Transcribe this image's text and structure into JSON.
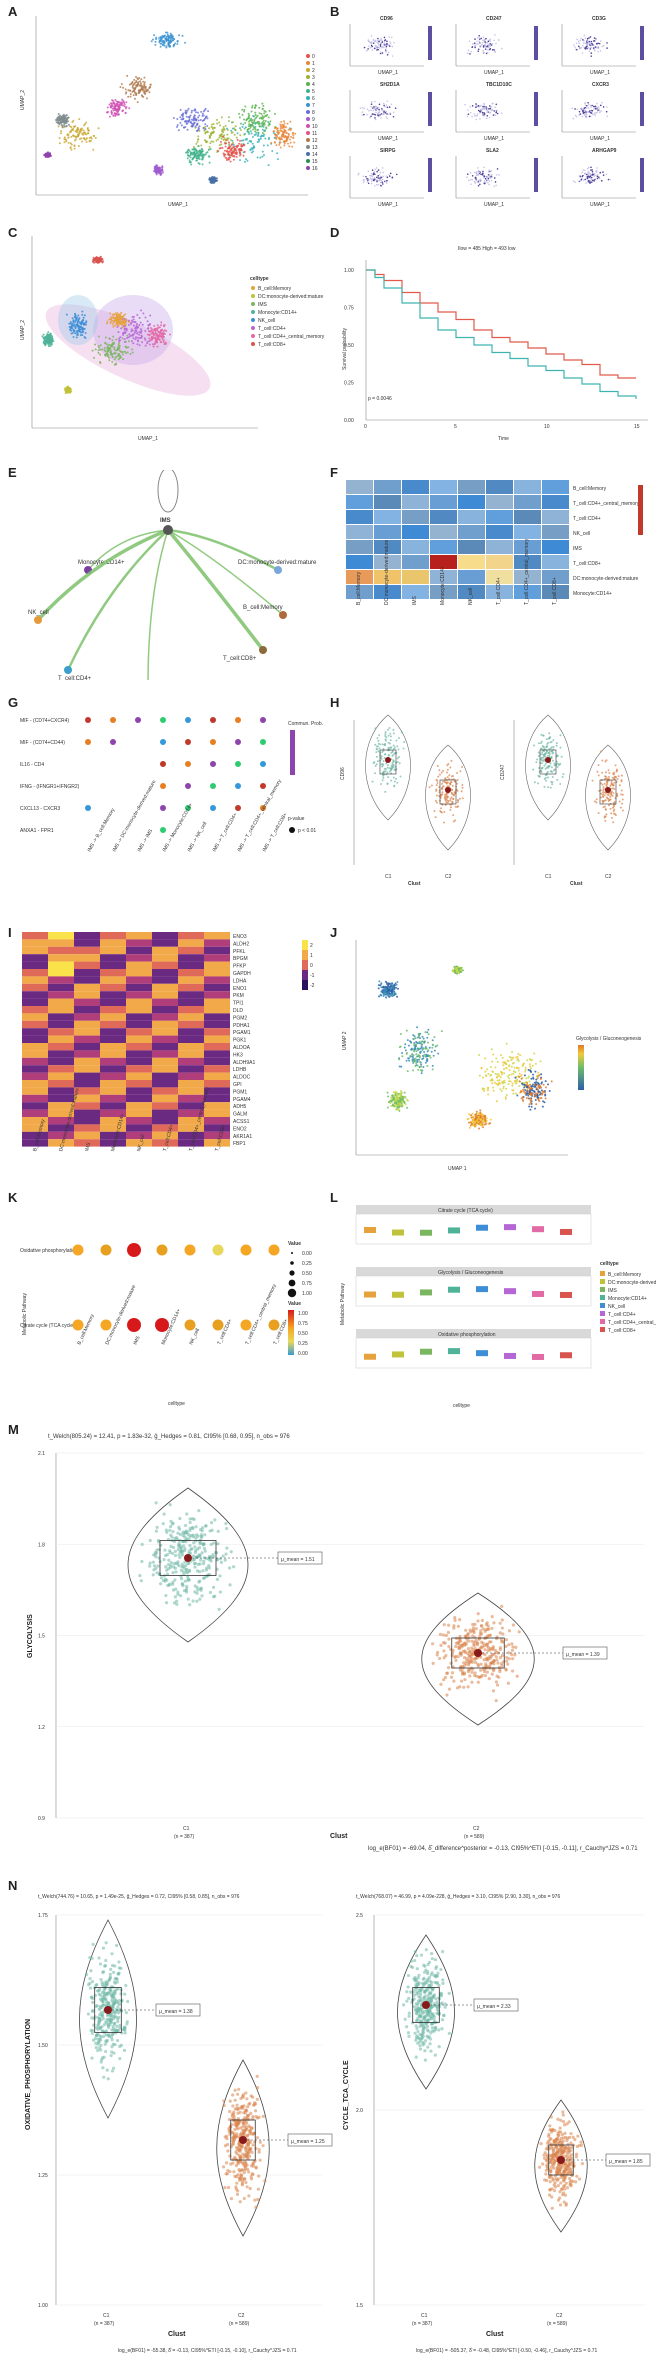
{
  "panels": {
    "A": {
      "label": "A",
      "xlabel": "UMAP_1",
      "ylabel": "UMAP_2",
      "clusters": [
        "0",
        "1",
        "2",
        "3",
        "4",
        "5",
        "6",
        "7",
        "8",
        "9",
        "10",
        "11",
        "12",
        "13",
        "14",
        "15",
        "16"
      ],
      "xticks": [
        "-10",
        "0"
      ],
      "yticks": [
        "10",
        "0",
        "-10"
      ]
    },
    "B": {
      "label": "B",
      "genes": [
        "CD96",
        "CD247",
        "CD3G",
        "SH2D1A",
        "TBC1D10C",
        "CXCR3",
        "SIRPG",
        "SLA2",
        "ARHGAP9"
      ],
      "xlabel": "UMAP_1",
      "ylabel": "UMAP_2"
    },
    "C": {
      "label": "C",
      "xlabel": "UMAP_1",
      "ylabel": "UMAP_2",
      "legend_title": "celltype",
      "celltypes": [
        "B_cell:Memory",
        "DC:monocyte-derived:mature",
        "IMS",
        "Monocyte:CD14+",
        "NK_cell",
        "T_cell:CD4+",
        "T_cell:CD4+_central_memory",
        "T_cell:CD8+"
      ]
    },
    "D": {
      "label": "D",
      "legend": "Ilow = 485 High = 493 low",
      "ylabel": "Survival probability",
      "xlabel": "Time",
      "pvalue": "p = 0.0046",
      "xticks": [
        "0",
        "5",
        "10",
        "15"
      ],
      "yticks": [
        "1.00",
        "0.75",
        "0.50",
        "0.25",
        "0.00"
      ]
    },
    "E": {
      "label": "E",
      "center": "IMS",
      "nodes": [
        "Monocyte:CD14+",
        "DC:monocyte-derived:mature",
        "NK_cell",
        "B_cell:Memory",
        "T_cell:CD4+",
        "T_cell:CD8+",
        "T_cell:CD4+_central_memory"
      ]
    },
    "F": {
      "label": "F",
      "rows": [
        "B_cell:Memory",
        "T_cell:CD4+_central_memory",
        "T_cell:CD4+",
        "NK_cell",
        "IMS",
        "T_cell:CD8+",
        "DC:monocyte-derived:mature",
        "Monocyte:CD14+"
      ],
      "cols": [
        "B_cell:Memory",
        "DC:monocyte-derived:mature",
        "IMS",
        "Monocyte:CD14+",
        "NK_cell",
        "T_cell:CD4+",
        "T_cell:CD4+_central_memory",
        "T_cell:CD8+"
      ]
    },
    "G": {
      "label": "G",
      "rows": [
        "MIF - (CD74+CXCR4)",
        "MIF - (CD74+CD44)",
        "IL16 - CD4",
        "IFNG - (IFNGR1+IFNGR2)",
        "CXCL13 - CXCR3",
        "ANXA1 - FPR1"
      ],
      "cols": [
        "IMS -> B_cell:Memory",
        "IMS -> DC:monocyte-derived:mature",
        "IMS -> IMS",
        "IMS -> Monocyte:CD14+",
        "IMS -> NK_cell",
        "IMS -> T_cell:CD4+",
        "IMS -> T_cell:CD4+_central_memory",
        "IMS -> T_cell:CD8+"
      ],
      "legend1": "Commun. Prob.",
      "legend2": "p-value",
      "legend2_item": "p < 0.01"
    },
    "H": {
      "label": "H",
      "left_ylabel": "CD96",
      "right_ylabel": "CD247",
      "xlabel": "Clust",
      "groups": [
        "C1",
        "C2"
      ]
    },
    "I": {
      "label": "I",
      "genes": [
        "ENO3",
        "ALDH2",
        "PFKL",
        "BPGM",
        "PFKP",
        "GAPDH",
        "LDHA",
        "ENO1",
        "PKM",
        "TPI1",
        "DLD",
        "PGM2",
        "PDHA1",
        "PGAM1",
        "PGK1",
        "ALDOA",
        "HK3",
        "ALDH9A1",
        "LDHB",
        "ALDOC",
        "GPI",
        "PGM1",
        "PGAM4",
        "ADH5",
        "GALM",
        "ACSS1",
        "ENO2",
        "AKR1A1",
        "FBP1"
      ],
      "cols": [
        "B_cell:Memory",
        "DC:monocyte-derived:mature",
        "IMS",
        "Monocyte:CD14+",
        "NK_cell",
        "T_cell:CD4+",
        "T_cell:CD4+_central_memory",
        "T_cell:CD8+"
      ],
      "scale": [
        "2",
        "1",
        "0",
        "-1",
        "-2"
      ]
    },
    "J": {
      "label": "J",
      "legend_title": "Glycolysis / Gluconeogenesis",
      "xlabel": "UMAP 1",
      "ylabel": "UMAP 2"
    },
    "K": {
      "label": "K",
      "ylabel": "Metabolic Pathway",
      "xlabel": "celltype",
      "rows": [
        "Oxidative phosphorylation",
        "Citrate cycle (TCA cycle)"
      ],
      "value_title": "Value",
      "size_vals": [
        "0.00",
        "0.25",
        "0.50",
        "0.75",
        "1.00"
      ],
      "color_vals": [
        "1.00",
        "0.75",
        "0.50",
        "0.25",
        "0.00"
      ]
    },
    "L": {
      "label": "L",
      "facets": [
        "Citrate cycle (TCA cycle)",
        "Glycolysis / Gluconeogenesis",
        "Oxidative phosphorylation"
      ],
      "ylabel": "Metabolic Pathway",
      "xlabel": "celltype",
      "legend_title": "celltype"
    },
    "M": {
      "label": "M",
      "stat": "t_Welch(805.24) = 12.41, p = 1.83e-32, ĝ_Hedges = 0.81, CI95% [0.68, 0.95], n_obs = 976",
      "ylabel": "GLYCOLYSIS",
      "xlabel": "Clust",
      "groups": [
        "C1",
        "C2"
      ],
      "ns": [
        "(n = 387)",
        "(n = 589)"
      ],
      "means": [
        "μ_mean = 1.51",
        "μ_mean = 1.39"
      ],
      "yticks": [
        "2.1",
        "1.8",
        "1.5",
        "1.2",
        "0.9"
      ],
      "bayes": "log_e(BF01) = -69.04, δ̂_difference^posterior = -0.13, CI95%^ETI [-0.15, -0.11], r_Cauchy^JZS = 0.71"
    },
    "N": {
      "label": "N",
      "left": {
        "stat": "t_Welch(744.76) = 10.65, p = 1.49e-25, ĝ_Hedges = 0.72, CI95% [0.58, 0.85], n_obs = 976",
        "ylabel": "OXIDATIVE_PHOSPHORYLATION",
        "xlabel": "Clust",
        "groups": [
          "C1",
          "C2"
        ],
        "ns": [
          "(n = 387)",
          "(n = 589)"
        ],
        "means": [
          "μ_mean = 1.38",
          "μ_mean = 1.25"
        ],
        "yticks": [
          "1.75",
          "1.50",
          "1.25",
          "1.00"
        ],
        "bayes": "log_e(BF01) = -55.38, δ̂ = -0.13, CI95%^ETI [-0.15, -0.10], r_Cauchy^JZS = 0.71"
      },
      "right": {
        "stat": "t_Welch(768.07) = 46.99, p = 4.09e-228, ĝ_Hedges = 3.10, CI95% [2.90, 3.30], n_obs = 976",
        "ylabel": "CYCLE_TCA_CYCLE",
        "xlabel": "Clust",
        "groups": [
          "C1",
          "C2"
        ],
        "ns": [
          "(n = 387)",
          "(n = 589)"
        ],
        "means": [
          "μ_mean = 2.33",
          "μ_mean = 1.85"
        ],
        "yticks": [
          "2.5",
          "2.0",
          "1.5"
        ],
        "bayes": "log_e(BF01) = -505.37, δ̂ = -0.48, CI95%^ETI [-0.50, -0.46], r_Cauchy^JZS = 0.71"
      }
    }
  },
  "colors": {
    "teal": "#6fb8a5",
    "orange": "#d9834b",
    "redline": "#e25b4a",
    "tealline": "#3fb3b0",
    "purple": "#6b5fa8"
  }
}
